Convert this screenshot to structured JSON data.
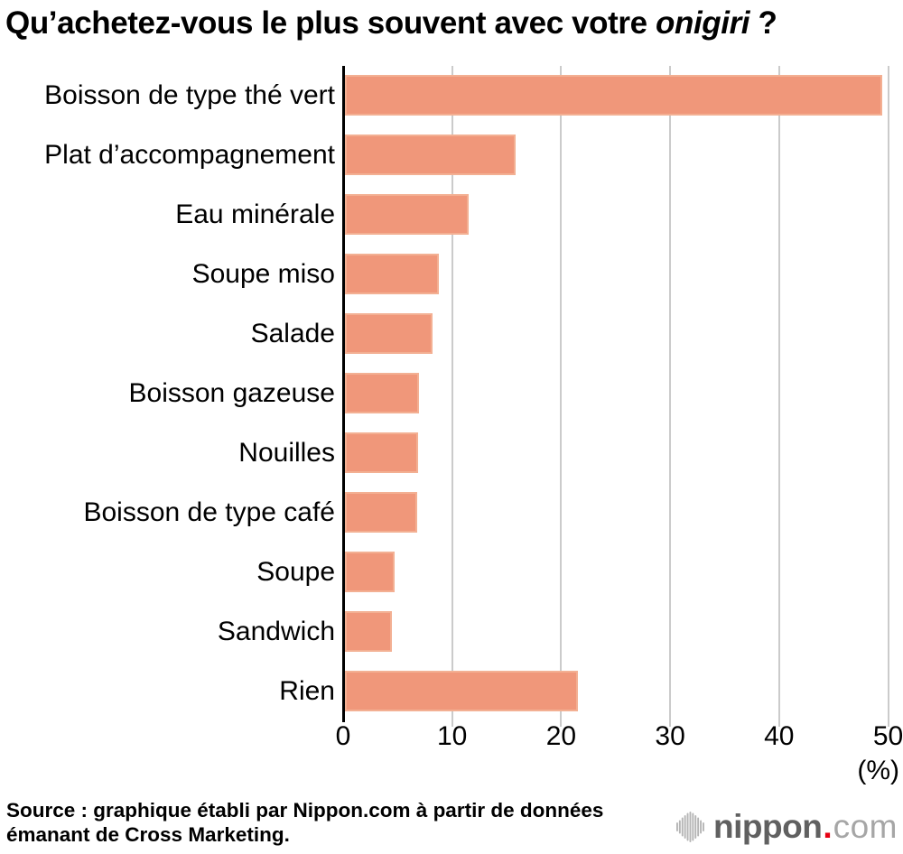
{
  "title": {
    "prefix": "Qu’achetez-vous le plus souvent avec votre ",
    "italic": "onigiri",
    "suffix": " ?"
  },
  "chart_data": {
    "type": "bar",
    "orientation": "horizontal",
    "categories": [
      "Boisson de type thé vert",
      "Plat d’accompagnement",
      "Eau minérale",
      "Soupe miso",
      "Salade",
      "Boisson gazeuse",
      "Nouilles",
      "Boisson de type café",
      "Soupe",
      "Sandwich",
      "Rien"
    ],
    "values": [
      49.5,
      15.8,
      11.5,
      8.8,
      8.2,
      7.0,
      6.9,
      6.8,
      4.7,
      4.5,
      21.5
    ],
    "xlim": [
      0,
      50
    ],
    "xticks": [
      0,
      10,
      20,
      30,
      40,
      50
    ],
    "xtick_labels": [
      "0",
      "10",
      "20",
      "30",
      "40",
      "50"
    ],
    "x_unit_label": "(%)",
    "grid": true,
    "legend": "none",
    "bar_color": "#F0977A",
    "bar_edge_color": "#F3B093",
    "gridline_color": "#CBCBCB",
    "axis_color": "#000000"
  },
  "source": {
    "line1": "Source : graphique établi par Nippon.com à partir de données",
    "line2": "émanant de Cross Marketing."
  },
  "logo": {
    "icon": "waveform-bars-icon",
    "name": "nippon",
    "dot": ".",
    "tld": "com",
    "name_color": "#606060",
    "dot_color": "#E60012",
    "tld_color": "#A6A6A6",
    "icon_color": "#B5B5B5"
  }
}
